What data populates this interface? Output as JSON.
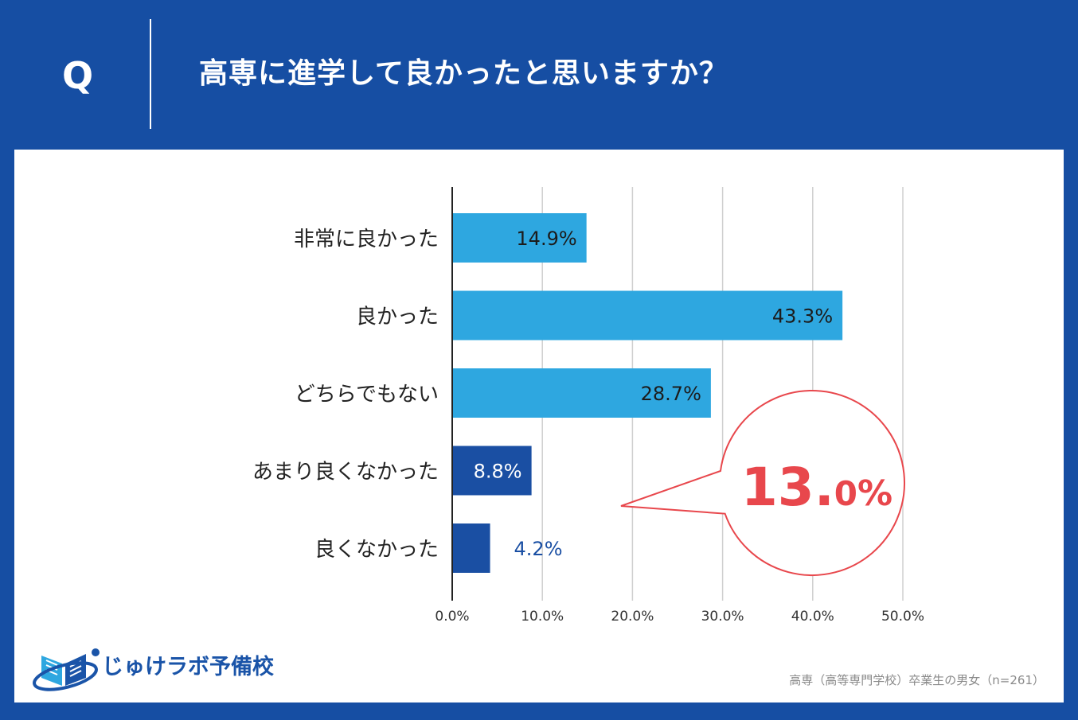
{
  "header": {
    "q_label": "Q",
    "question": "高専に進学して良かったと思いますか？"
  },
  "colors": {
    "background": "#164ea3",
    "bar_positive": "#2ea7e0",
    "bar_negative": "#1a4fa3",
    "highlight": "#e8474c",
    "label_negative_outside": "#1a4fa3"
  },
  "chart_data": {
    "type": "bar",
    "orientation": "horizontal",
    "categories": [
      "非常に良かった",
      "良かった",
      "どちらでもない",
      "あまり良くなかった",
      "良くなかった"
    ],
    "values": [
      14.9,
      43.3,
      28.7,
      8.8,
      4.2
    ],
    "value_labels": [
      "14.9%",
      "43.3%",
      "28.7%",
      "8.8%",
      "4.2%"
    ],
    "groups": [
      "positive",
      "positive",
      "positive",
      "negative",
      "negative"
    ],
    "xlim": [
      0,
      50
    ],
    "xticks": [
      0,
      10,
      20,
      30,
      40,
      50
    ],
    "xtick_labels": [
      "0.0%",
      "10.0%",
      "20.0%",
      "30.0%",
      "40.0%",
      "50.0%"
    ],
    "grid": true,
    "callout": {
      "value_main": "13.",
      "value_decimal": "0",
      "value_unit": "%"
    }
  },
  "logo": {
    "text": "じゅけラボ予備校",
    "icon": "book-icon"
  },
  "footer": {
    "source": "高専（高等専門学校）卒業生の男女（n=261）"
  }
}
